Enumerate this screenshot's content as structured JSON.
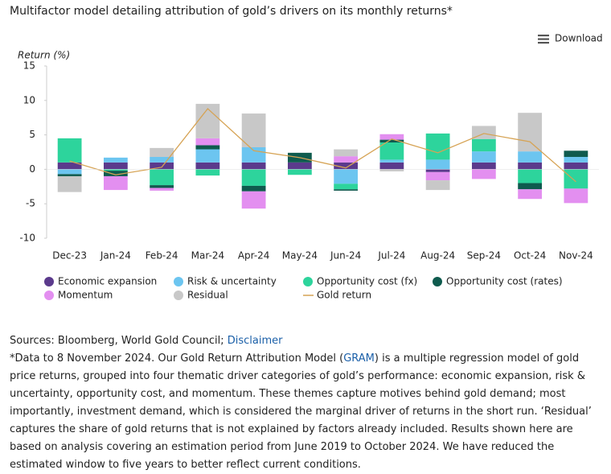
{
  "chart_data": {
    "type": "bar",
    "stacked": true,
    "title": "Multifactor model detailing attribution of gold’s drivers on its monthly returns*",
    "y_axis_label": "Return (%)",
    "categories": [
      "Dec-23",
      "Jan-24",
      "Feb-24",
      "Mar-24",
      "Apr-24",
      "May-24",
      "Jun-24",
      "Jul-24",
      "Aug-24",
      "Sep-24",
      "Oct-24",
      "Nov-24"
    ],
    "ylim": [
      -10,
      15
    ],
    "yticks": [
      -10,
      -5,
      0,
      5,
      10,
      15
    ],
    "grid": false,
    "series": [
      {
        "name": "Economic expansion",
        "color": "#5b3a8c",
        "values": [
          1.0,
          1.0,
          1.0,
          1.0,
          1.0,
          1.0,
          1.0,
          1.0,
          -0.4,
          1.0,
          1.0,
          1.0
        ]
      },
      {
        "name": "Risk & uncertainty",
        "color": "#6cc5f0",
        "values": [
          -0.7,
          0.7,
          0.8,
          1.9,
          2.2,
          0,
          -2.1,
          0.4,
          1.4,
          1.6,
          1.6,
          0.8
        ]
      },
      {
        "name": "Opportunity cost (fx)",
        "color": "#2dd49c",
        "values": [
          3.5,
          -0.2,
          -2.3,
          -0.9,
          -2.4,
          -0.8,
          -0.8,
          2.5,
          3.8,
          1.8,
          -2.0,
          -2.8
        ]
      },
      {
        "name": "Opportunity cost (rates)",
        "color": "#0f5b4e",
        "values": [
          -0.3,
          -0.8,
          -0.4,
          0.6,
          -0.8,
          1.4,
          -0.2,
          0.4,
          0,
          0,
          -0.9,
          0.9
        ]
      },
      {
        "name": "Momentum",
        "color": "#e38ff0",
        "values": [
          0,
          -2.0,
          -0.4,
          1.0,
          -2.5,
          0,
          0.9,
          0.8,
          -1.2,
          -1.4,
          -1.4,
          -2.1
        ]
      },
      {
        "name": "Residual",
        "color": "#c8c8c8",
        "values": [
          -2.3,
          0,
          1.3,
          5.0,
          4.9,
          0,
          1.0,
          -0.3,
          -1.4,
          1.9,
          5.6,
          0
        ]
      },
      {
        "name": "Gold return",
        "color": "#d6a354",
        "type": "line",
        "values": [
          1.2,
          -0.8,
          0.3,
          8.8,
          2.7,
          1.7,
          0.2,
          4.4,
          2.4,
          5.2,
          4.0,
          -1.8
        ]
      }
    ]
  },
  "toolbar": {
    "download": "Download"
  },
  "notes": {
    "sources": "Sources: Bloomberg, World Gold Council;",
    "disclaimer": "Disclaimer",
    "note_start": "*Data to 8 November 2024. Our Gold Return Attribution Model (",
    "gram": "GRAM",
    "note_end": ") is a multiple regression model of gold price returns, grouped into four thematic driver categories of gold’s performance: economic expansion, risk & uncertainty, opportunity cost, and momentum. These themes capture motives behind gold demand; most importantly, investment demand, which is considered the marginal driver of returns in the short run. ‘Residual’ captures the share of gold returns that is not explained by factors already included. Results shown here are based on analysis covering an estimation period from June 2019 to October 2024. We have reduced the estimated window to five years to better reflect current conditions."
  }
}
